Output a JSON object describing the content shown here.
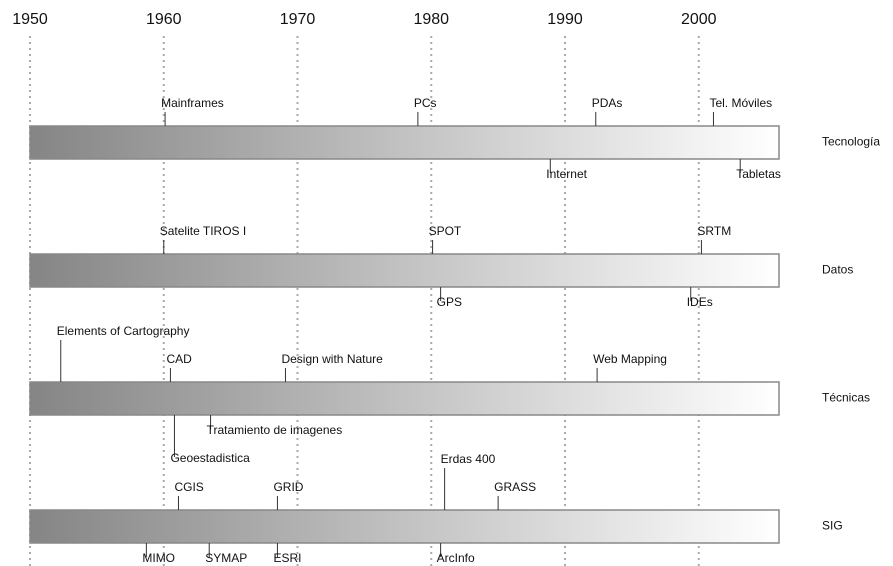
{
  "axis": {
    "xlim": [
      1950,
      2006
    ],
    "ticks": [
      1950,
      1960,
      1970,
      1980,
      1990,
      2000
    ]
  },
  "tracks": [
    {
      "label": "Tecnología",
      "above": [
        {
          "label": "Mainframes",
          "year": 1960.1
        },
        {
          "label": "PCs",
          "year": 1979
        },
        {
          "label": "PDAs",
          "year": 1992.3
        },
        {
          "label": "Tel. Móviles",
          "year": 2001.1
        }
      ],
      "below": [
        {
          "label": "Internet",
          "year": 1988.9
        },
        {
          "label": "Tabletas",
          "year": 2003.1
        }
      ]
    },
    {
      "label": "Datos",
      "above": [
        {
          "label": "Satelite TIROS I",
          "year": 1960
        },
        {
          "label": "SPOT",
          "year": 1980.1
        },
        {
          "label": "SRTM",
          "year": 2000.2
        }
      ],
      "below": [
        {
          "label": "GPS",
          "year": 1980.7
        },
        {
          "label": "IDEs",
          "year": 1999.4
        }
      ]
    },
    {
      "label": "Técnicas",
      "above": [
        {
          "label": "Elements of Cartography",
          "year": 1952.3
        },
        {
          "label": "CAD",
          "year": 1960.5
        },
        {
          "label": "Design with Nature",
          "year": 1969.1
        },
        {
          "label": "Web Mapping",
          "year": 1992.4
        }
      ],
      "below": [
        {
          "label": "Geoestadistica",
          "year": 1960.8
        },
        {
          "label": "Tratamiento de imagenes",
          "year": 1963.5
        }
      ]
    },
    {
      "label": "SIG",
      "above": [
        {
          "label": "CGIS",
          "year": 1961.1
        },
        {
          "label": "GRID",
          "year": 1968.5
        },
        {
          "label": "Erdas 400",
          "year": 1981
        },
        {
          "label": "GRASS",
          "year": 1985
        }
      ],
      "below": [
        {
          "label": "MIMO",
          "year": 1958.7
        },
        {
          "label": "SYMAP",
          "year": 1963.4
        },
        {
          "label": "ESRI",
          "year": 1968.5
        },
        {
          "label": "ArcInfo",
          "year": 1980.7
        }
      ]
    }
  ]
}
